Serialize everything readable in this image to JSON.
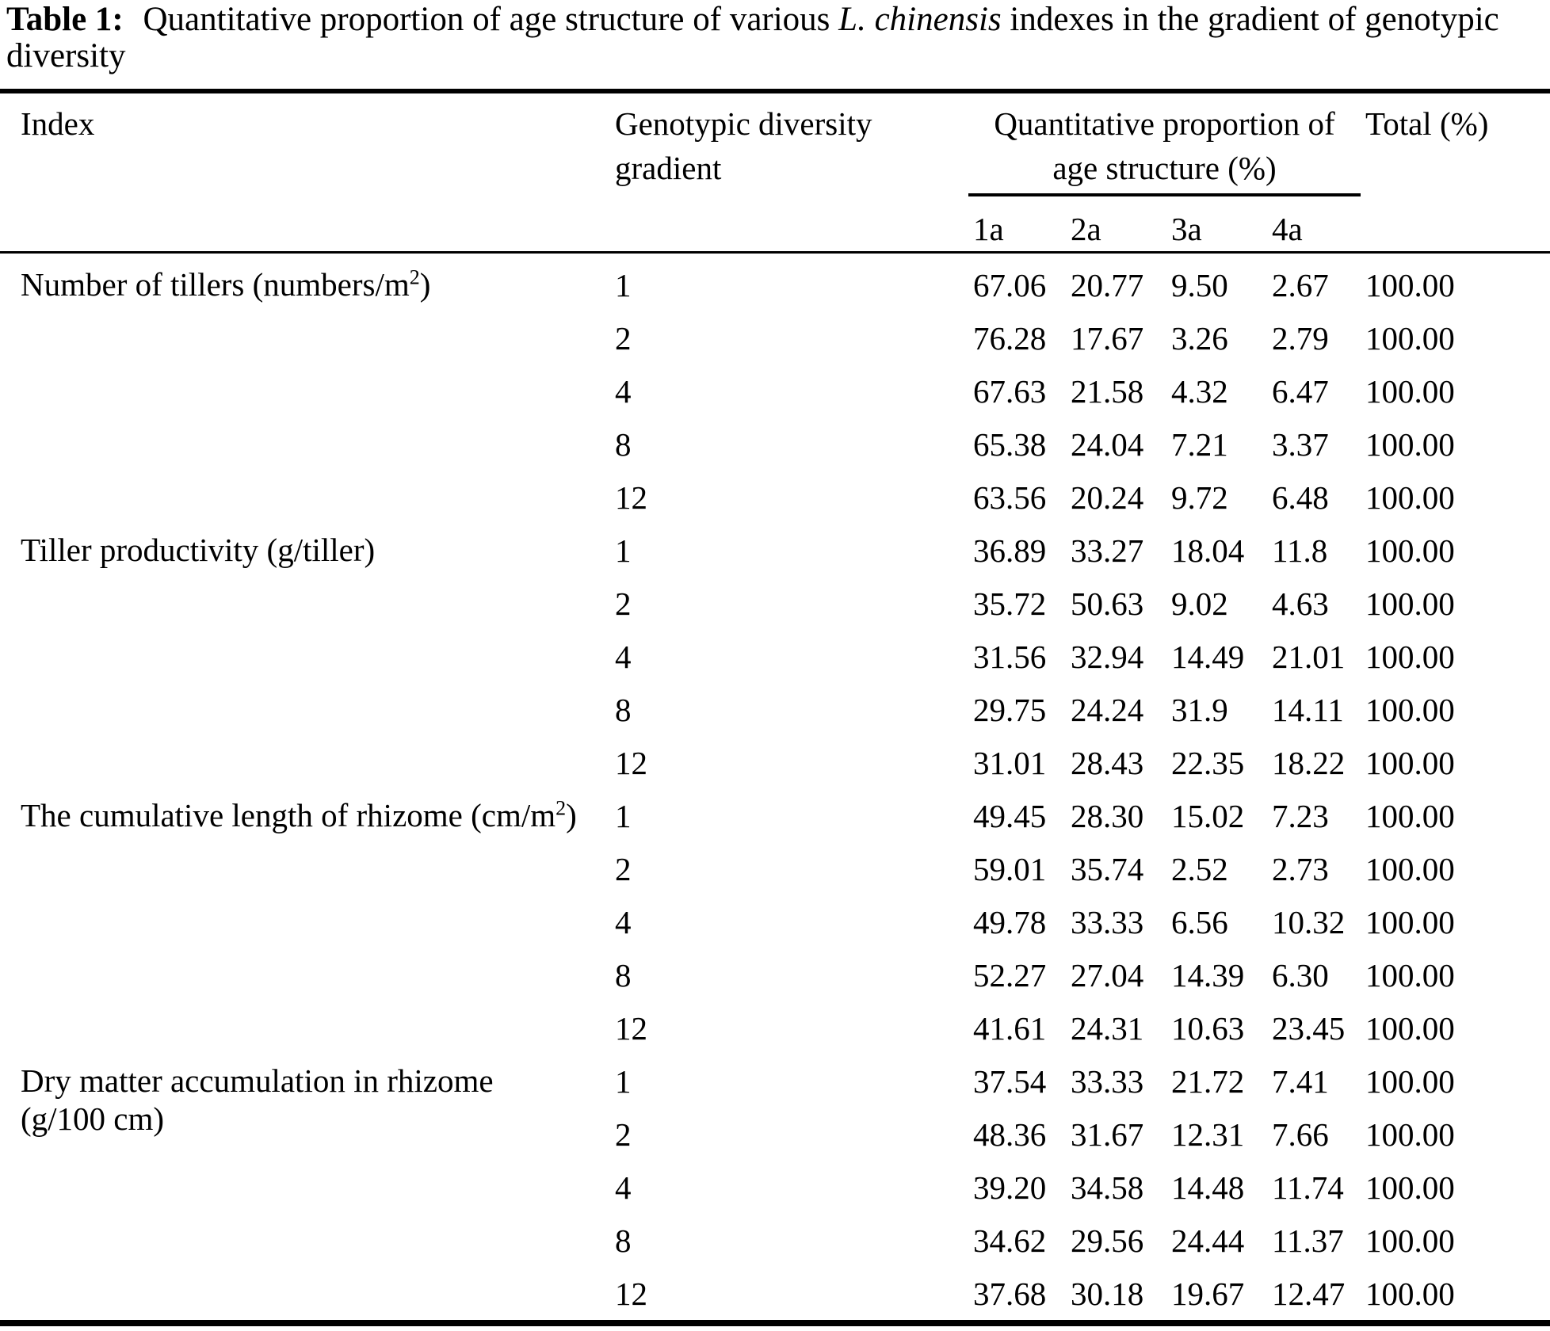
{
  "title": {
    "label": "Table 1:",
    "pre": " Quantitative proportion of age structure of various ",
    "species": "L. chinensis",
    "post": " indexes in the gradient of genotypic diversity"
  },
  "header": {
    "index": "Index",
    "gradient": "Genotypic diversity gradient",
    "age_group_line1": "Quantitative proportion of",
    "age_group_line2": "age structure (%)",
    "age_classes": [
      "1a",
      "2a",
      "3a",
      "4a"
    ],
    "total": "Total (%)"
  },
  "table": {
    "blocks": [
      {
        "index": {
          "pre": "Number of tillers (numbers/m",
          "sup": "2",
          "post": ")"
        },
        "rows": [
          {
            "gradient": "1",
            "values": [
              "67.06",
              "20.77",
              "9.50",
              "2.67"
            ],
            "total": "100.00"
          },
          {
            "gradient": "2",
            "values": [
              "76.28",
              "17.67",
              "3.26",
              "2.79"
            ],
            "total": "100.00"
          },
          {
            "gradient": "4",
            "values": [
              "67.63",
              "21.58",
              "4.32",
              "6.47"
            ],
            "total": "100.00"
          },
          {
            "gradient": "8",
            "values": [
              "65.38",
              "24.04",
              "7.21",
              "3.37"
            ],
            "total": "100.00"
          },
          {
            "gradient": "12",
            "values": [
              "63.56",
              "20.24",
              "9.72",
              "6.48"
            ],
            "total": "100.00"
          }
        ]
      },
      {
        "index": {
          "pre": "Tiller productivity (g/tiller)",
          "sup": "",
          "post": ""
        },
        "rows": [
          {
            "gradient": "1",
            "values": [
              "36.89",
              "33.27",
              "18.04",
              "11.8"
            ],
            "total": "100.00"
          },
          {
            "gradient": "2",
            "values": [
              "35.72",
              "50.63",
              "9.02",
              "4.63"
            ],
            "total": "100.00"
          },
          {
            "gradient": "4",
            "values": [
              "31.56",
              "32.94",
              "14.49",
              "21.01"
            ],
            "total": "100.00"
          },
          {
            "gradient": "8",
            "values": [
              "29.75",
              "24.24",
              "31.9",
              "14.11"
            ],
            "total": "100.00"
          },
          {
            "gradient": "12",
            "values": [
              "31.01",
              "28.43",
              "22.35",
              "18.22"
            ],
            "total": "100.00"
          }
        ]
      },
      {
        "index": {
          "pre": "The cumulative length of rhizome (cm/m",
          "sup": "2",
          "post": ")"
        },
        "rows": [
          {
            "gradient": "1",
            "values": [
              "49.45",
              "28.30",
              "15.02",
              "7.23"
            ],
            "total": "100.00"
          },
          {
            "gradient": "2",
            "values": [
              "59.01",
              "35.74",
              "2.52",
              "2.73"
            ],
            "total": "100.00"
          },
          {
            "gradient": "4",
            "values": [
              "49.78",
              "33.33",
              "6.56",
              "10.32"
            ],
            "total": "100.00"
          },
          {
            "gradient": "8",
            "values": [
              "52.27",
              "27.04",
              "14.39",
              "6.30"
            ],
            "total": "100.00"
          },
          {
            "gradient": "12",
            "values": [
              "41.61",
              "24.31",
              "10.63",
              "23.45"
            ],
            "total": "100.00"
          }
        ]
      },
      {
        "index": {
          "pre": "Dry matter accumulation in rhizome (g/100 cm)",
          "sup": "",
          "post": ""
        },
        "rows": [
          {
            "gradient": "1",
            "values": [
              "37.54",
              "33.33",
              "21.72",
              "7.41"
            ],
            "total": "100.00"
          },
          {
            "gradient": "2",
            "values": [
              "48.36",
              "31.67",
              "12.31",
              "7.66"
            ],
            "total": "100.00"
          },
          {
            "gradient": "4",
            "values": [
              "39.20",
              "34.58",
              "14.48",
              "11.74"
            ],
            "total": "100.00"
          },
          {
            "gradient": "8",
            "values": [
              "34.62",
              "29.56",
              "24.44",
              "11.37"
            ],
            "total": "100.00"
          },
          {
            "gradient": "12",
            "values": [
              "37.68",
              "30.18",
              "19.67",
              "12.47"
            ],
            "total": "100.00"
          }
        ]
      }
    ]
  }
}
